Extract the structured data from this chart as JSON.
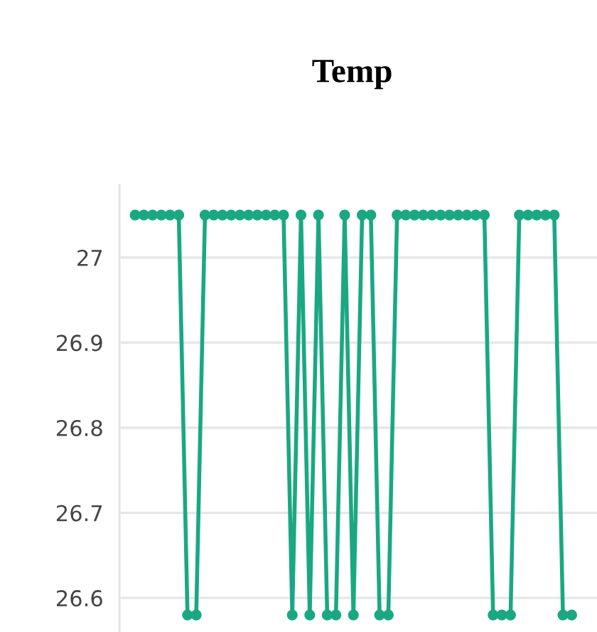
{
  "chart_data": {
    "type": "line",
    "title": "Temp",
    "categories": [
      null,
      null,
      null,
      null,
      null,
      null,
      null,
      null,
      null,
      null,
      null,
      null,
      null,
      null,
      null,
      null,
      null,
      null,
      null,
      null,
      null,
      null,
      null,
      null,
      null,
      null,
      null,
      null,
      null,
      null,
      null,
      null,
      null,
      null,
      null,
      null,
      null,
      null,
      null,
      null,
      null,
      null,
      null,
      null,
      null,
      null,
      null,
      null,
      null,
      null,
      null
    ],
    "series": [
      {
        "color": "#1aa882",
        "values": [
          27.05,
          27.05,
          27.05,
          27.05,
          27.05,
          27.05,
          26.58,
          26.58,
          27.05,
          27.05,
          27.05,
          27.05,
          27.05,
          27.05,
          27.05,
          27.05,
          27.05,
          27.05,
          26.58,
          27.05,
          26.58,
          27.05,
          26.58,
          26.58,
          27.05,
          26.58,
          27.05,
          27.05,
          26.58,
          26.58,
          27.05,
          27.05,
          27.05,
          27.05,
          27.05,
          27.05,
          27.05,
          27.05,
          27.05,
          27.05,
          27.05,
          26.58,
          26.58,
          26.58,
          27.05,
          27.05,
          27.05,
          27.05,
          27.05,
          26.58,
          26.58
        ]
      }
    ],
    "ylim": [
      26.56,
      27.085
    ],
    "yticks": [
      26.6,
      26.7,
      26.8,
      26.9,
      27
    ],
    "tick_labels": "y",
    "grid": "y",
    "marker": "circle",
    "line_style": "solid"
  }
}
